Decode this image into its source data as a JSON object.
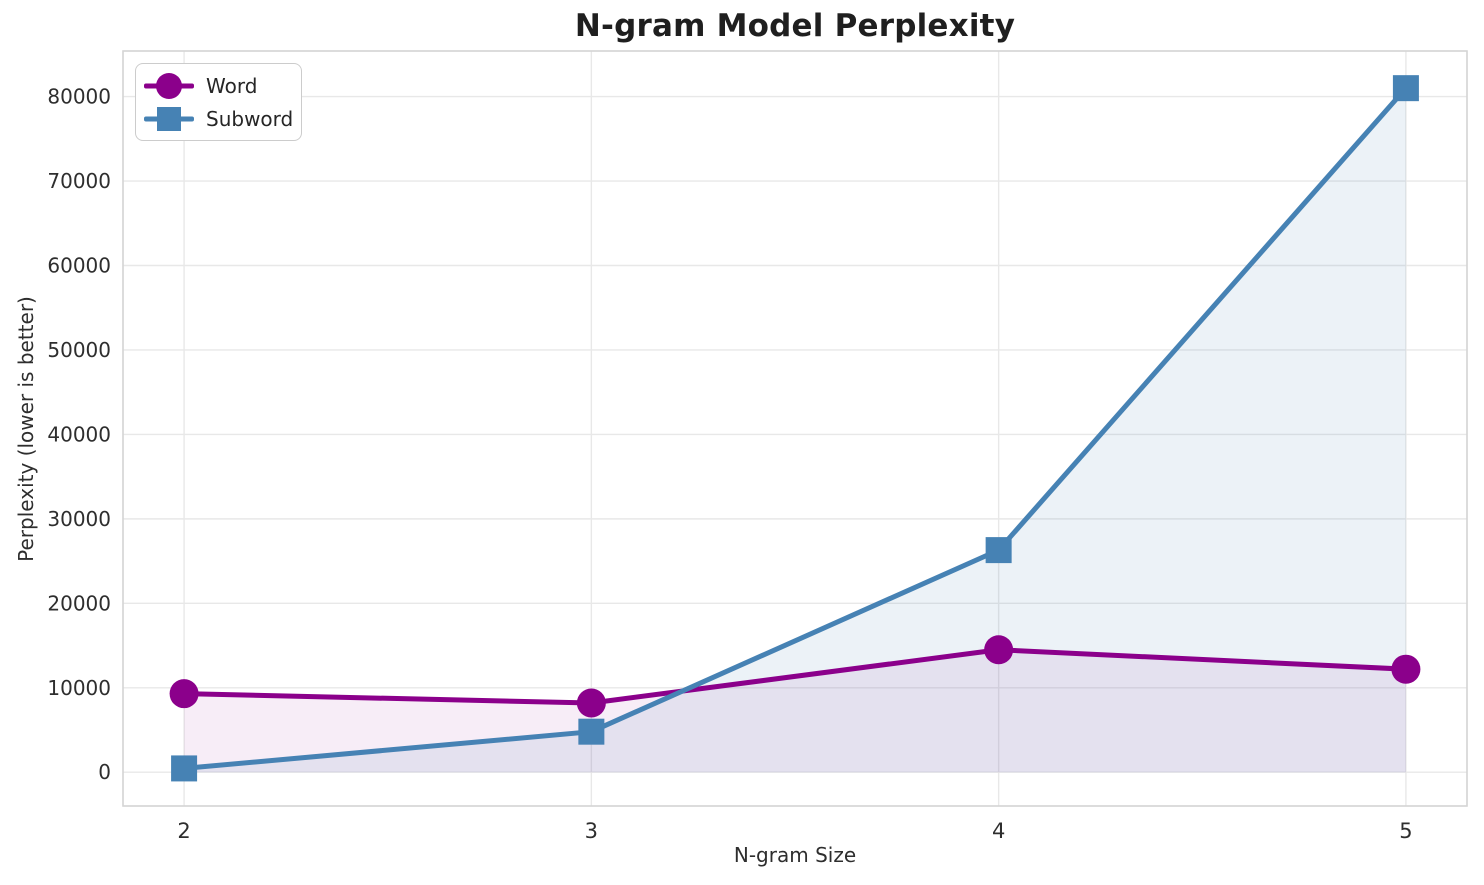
{
  "title": "N-gram Model Perplexity",
  "chart_data": {
    "type": "line",
    "title": "N-gram Model Perplexity",
    "xlabel": "N-gram Size",
    "ylabel": "Perplexity (lower is better)",
    "x": [
      2,
      3,
      4,
      5
    ],
    "series": [
      {
        "name": "Word",
        "values": [
          9300,
          8200,
          14500,
          12200
        ],
        "color": "#8B008B",
        "fill_color": "rgba(139, 0, 139, 0.07)",
        "marker": "circle"
      },
      {
        "name": "Subword",
        "values": [
          450,
          4800,
          26300,
          81000
        ],
        "color": "#4682B4",
        "fill_color": "rgba(70, 130, 180, 0.10)",
        "marker": "square"
      }
    ],
    "xticks": [
      2,
      3,
      4,
      5
    ],
    "yticks": [
      0,
      10000,
      20000,
      30000,
      40000,
      50000,
      60000,
      70000,
      80000
    ],
    "xlim": [
      1.85,
      5.15
    ],
    "ylim": [
      -4000,
      85400
    ],
    "grid": true,
    "area_fill_to": 0,
    "legend_position": "upper left",
    "colors": {
      "grid": "#e8e8e8",
      "spine": "#d4d4d4",
      "tick_text": "#2e2e2e",
      "background": "#ffffff"
    }
  }
}
